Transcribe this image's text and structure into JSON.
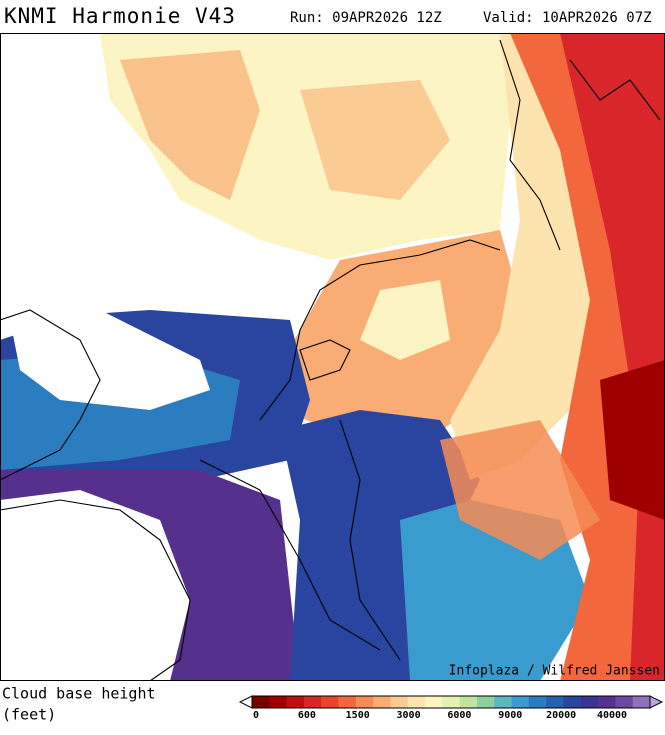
{
  "header": {
    "title": "KNMI Harmonie V43",
    "run": "Run: 09APR2026 12Z",
    "valid": "Valid: 10APR2026 07Z"
  },
  "map": {
    "credit": "Infoplaza / Wilfred Janssen"
  },
  "legend": {
    "label": "Cloud base height",
    "unit": "(feet)",
    "colors": [
      "#7a0000",
      "#9e0000",
      "#c00d0d",
      "#d8262a",
      "#e8442e",
      "#f2673c",
      "#f68c55",
      "#f9ad74",
      "#fbcb94",
      "#fde3ae",
      "#fcf4c3",
      "#e5f1ae",
      "#c2e39e",
      "#8fcf9c",
      "#5ab8be",
      "#3a9bce",
      "#2c7cc0",
      "#2660ae",
      "#2a45a0",
      "#3a3390",
      "#55308d",
      "#6c489f",
      "#8d72b9"
    ],
    "under_color": "#ffffff",
    "over_color": "#b9a6da",
    "ticks": [
      0,
      600,
      1500,
      3000,
      6000,
      9000,
      20000,
      40000
    ]
  }
}
